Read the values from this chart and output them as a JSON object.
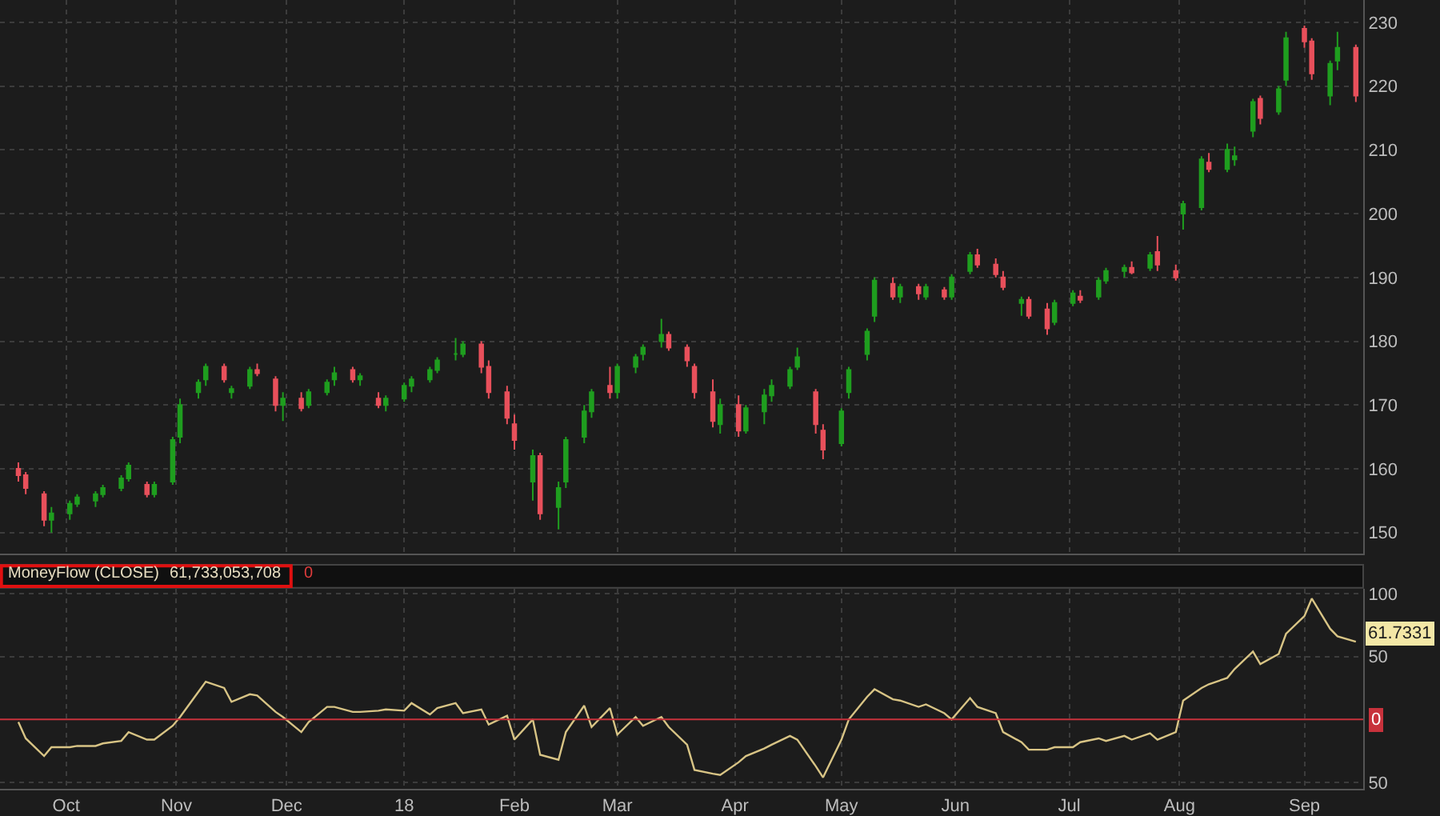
{
  "chart_data": [
    {
      "type": "candlestick",
      "colors": [
        "#e8505b",
        "#e8505b",
        "#e8505b",
        "#1f9e1f",
        "#1f9e1f",
        "#1f9e1f",
        "#1f9e1f",
        "#1f9e1f",
        "#1f9e1f",
        "#1f9e1f",
        "#e8505b",
        "#1f9e1f",
        "#1f9e1f",
        "#1f9e1f",
        "#1f9e1f",
        "#1f9e1f",
        "#e8505b",
        "#1f9e1f",
        "#1f9e1f",
        "#e8505b",
        "#e8505b",
        "#1f9e1f",
        "#e8505b",
        "#1f9e1f",
        "#1f9e1f",
        "#1f9e1f",
        "#e8505b",
        "#1f9e1f",
        "#e8505b",
        "#1f9e1f",
        "#1f9e1f",
        "#1f9e1f",
        "#1f9e1f",
        "#1f9e1f",
        "#1f9e1f",
        "#1f9e1f",
        "#e8505b",
        "#e8505b",
        "#e8505b",
        "#e8505b",
        "#1f9e1f",
        "#e8505b",
        "#1f9e1f",
        "#1f9e1f",
        "#1f9e1f",
        "#1f9e1f",
        "#e8505b",
        "#1f9e1f",
        "#1f9e1f",
        "#1f9e1f",
        "#1f9e1f",
        "#e8505b",
        "#e8505b",
        "#e8505b",
        "#e8505b",
        "#1f9e1f",
        "#e8505b",
        "#1f9e1f",
        "#1f9e1f",
        "#1f9e1f",
        "#1f9e1f",
        "#1f9e1f",
        "#e8505b",
        "#e8505b",
        "#1f9e1f",
        "#1f9e1f",
        "#1f9e1f",
        "#1f9e1f",
        "#e8505b",
        "#1f9e1f",
        "#e8505b",
        "#1f9e1f",
        "#e8505b",
        "#1f9e1f",
        "#1f9e1f",
        "#e8505b",
        "#e8505b",
        "#e8505b",
        "#1f9e1f",
        "#e8505b",
        "#e8505b",
        "#1f9e1f",
        "#1f9e1f",
        "#e8505b",
        "#1f9e1f",
        "#1f9e1f",
        "#1f9e1f",
        "#e8505b",
        "#1f9e1f",
        "#e8505b",
        "#e8505b",
        "#1f9e1f",
        "#1f9e1f",
        "#e8505b",
        "#1f9e1f",
        "#1f9e1f",
        "#1f9e1f",
        "#e8505b",
        "#1f9e1f",
        "#1f9e1f",
        "#e8505b",
        "#e8505b",
        "#1f9e1f",
        "#1f9e1f",
        "#e8505b"
      ],
      "grid": true,
      "tick_labels": "y",
      "xlim": [
        "2017-09-14",
        "2018-09-20"
      ],
      "ylim": [
        146.7,
        233.5
      ],
      "yticks": [
        150,
        160,
        170,
        180,
        190,
        200,
        210,
        220,
        230
      ],
      "xticks": [
        {
          "value": "2017-10-02",
          "label": null
        },
        {
          "value": "2017-11-01",
          "label": null
        },
        {
          "value": "2017-12-01",
          "label": null
        },
        {
          "value": "2018-01-02",
          "label": null
        },
        {
          "value": "2018-02-01",
          "label": null
        },
        {
          "value": "2018-03-01",
          "label": null
        },
        {
          "value": "2018-04-02",
          "label": null
        },
        {
          "value": "2018-05-01",
          "label": null
        },
        {
          "value": "2018-06-01",
          "label": null
        },
        {
          "value": "2018-07-02",
          "label": null
        },
        {
          "value": "2018-08-01",
          "label": null
        },
        {
          "value": "2018-09-04",
          "label": null
        }
      ],
      "x": [
        "2017-09-19",
        "2017-09-21",
        "2017-09-26",
        "2017-09-28",
        "2017-10-03",
        "2017-10-05",
        "2017-10-10",
        "2017-10-12",
        "2017-10-17",
        "2017-10-19",
        "2017-10-24",
        "2017-10-26",
        "2017-10-31",
        "2017-11-02",
        "2017-11-07",
        "2017-11-09",
        "2017-11-14",
        "2017-11-16",
        "2017-11-21",
        "2017-11-23",
        "2017-11-28",
        "2017-11-30",
        "2017-12-05",
        "2017-12-07",
        "2017-12-12",
        "2017-12-14",
        "2017-12-19",
        "2017-12-21",
        "2017-12-26",
        "2017-12-28",
        "2018-01-02",
        "2018-01-04",
        "2018-01-09",
        "2018-01-11",
        "2018-01-16",
        "2018-01-18",
        "2018-01-23",
        "2018-01-25",
        "2018-01-30",
        "2018-02-01",
        "2018-02-06",
        "2018-02-08",
        "2018-02-13",
        "2018-02-15",
        "2018-02-20",
        "2018-02-22",
        "2018-02-27",
        "2018-03-01",
        "2018-03-06",
        "2018-03-08",
        "2018-03-13",
        "2018-03-15",
        "2018-03-20",
        "2018-03-22",
        "2018-03-27",
        "2018-03-29",
        "2018-04-03",
        "2018-04-05",
        "2018-04-10",
        "2018-04-12",
        "2018-04-17",
        "2018-04-19",
        "2018-04-24",
        "2018-04-26",
        "2018-05-01",
        "2018-05-03",
        "2018-05-08",
        "2018-05-10",
        "2018-05-15",
        "2018-05-17",
        "2018-05-22",
        "2018-05-24",
        "2018-05-29",
        "2018-05-31",
        "2018-06-05",
        "2018-06-07",
        "2018-06-12",
        "2018-06-14",
        "2018-06-19",
        "2018-06-21",
        "2018-06-26",
        "2018-06-28",
        "2018-07-03",
        "2018-07-05",
        "2018-07-10",
        "2018-07-12",
        "2018-07-17",
        "2018-07-19",
        "2018-07-24",
        "2018-07-26",
        "2018-07-31",
        "2018-08-02",
        "2018-08-07",
        "2018-08-09",
        "2018-08-14",
        "2018-08-16",
        "2018-08-21",
        "2018-08-23",
        "2018-08-28",
        "2018-08-30",
        "2018-09-04",
        "2018-09-06",
        "2018-09-11",
        "2018-09-13",
        "2018-09-18"
      ],
      "ohlc": [
        [
          160,
          161,
          158,
          159
        ],
        [
          159,
          159.5,
          156,
          157
        ],
        [
          156,
          156.5,
          151,
          152
        ],
        [
          152,
          154,
          150,
          153
        ],
        [
          153,
          155,
          152,
          154.5
        ],
        [
          154.5,
          156,
          154,
          155.5
        ],
        [
          155,
          156.5,
          154,
          156
        ],
        [
          156,
          157.5,
          155.5,
          157
        ],
        [
          157,
          159,
          156.5,
          158.5
        ],
        [
          158.5,
          161,
          158,
          160.5
        ],
        [
          157.5,
          158,
          155.5,
          156
        ],
        [
          156,
          158,
          155.5,
          157.5
        ],
        [
          158,
          165,
          157.5,
          164.5
        ],
        [
          165,
          171,
          164,
          170
        ],
        [
          172,
          174,
          171,
          173.5
        ],
        [
          174,
          176.5,
          173,
          176
        ],
        [
          176,
          176.5,
          173.5,
          174
        ],
        [
          172,
          173,
          171,
          172.5
        ],
        [
          173,
          176,
          172.5,
          175.5
        ],
        [
          175.5,
          176.5,
          174.5,
          175
        ],
        [
          174,
          174.5,
          169,
          170
        ],
        [
          170,
          172,
          167.5,
          171
        ],
        [
          171,
          172,
          169,
          169.5
        ],
        [
          170,
          172.5,
          169.5,
          172
        ],
        [
          172,
          174,
          171.5,
          173.5
        ],
        [
          174,
          176,
          173,
          175
        ],
        [
          175.5,
          176,
          173.5,
          174
        ],
        [
          174,
          175,
          173,
          174.5
        ],
        [
          171,
          172,
          169.5,
          170
        ],
        [
          170,
          171.5,
          169,
          171
        ],
        [
          171,
          173.5,
          170.5,
          173
        ],
        [
          173,
          174.5,
          172,
          174
        ],
        [
          174,
          176,
          173.5,
          175.5
        ],
        [
          175.5,
          177.5,
          175,
          177
        ],
        [
          178,
          180.5,
          177,
          178
        ],
        [
          178,
          180,
          177.5,
          179.5
        ],
        [
          179.5,
          180,
          175,
          176
        ],
        [
          176,
          177,
          171,
          172
        ],
        [
          172,
          173,
          167,
          168
        ],
        [
          167,
          168.5,
          163,
          164.5
        ],
        [
          158,
          163,
          155,
          162
        ],
        [
          162,
          162.5,
          152,
          153
        ],
        [
          154,
          158,
          150.5,
          157
        ],
        [
          158,
          165,
          157,
          164.5
        ],
        [
          165,
          170,
          164,
          169
        ],
        [
          169,
          172.5,
          168,
          172
        ],
        [
          173,
          176,
          171,
          172
        ],
        [
          172,
          176.5,
          171,
          176
        ],
        [
          176,
          178,
          175,
          177.5
        ],
        [
          178,
          179.5,
          177,
          179
        ],
        [
          180,
          183.5,
          179,
          181
        ],
        [
          181,
          181.5,
          178.5,
          179
        ],
        [
          179,
          179.5,
          176,
          177
        ],
        [
          176,
          176.5,
          171,
          172
        ],
        [
          172,
          174,
          166.5,
          167.5
        ],
        [
          167,
          171,
          165.5,
          170
        ],
        [
          170,
          171.5,
          165,
          166
        ],
        [
          166,
          170,
          165.5,
          169.5
        ],
        [
          169,
          172.5,
          167,
          171.5
        ],
        [
          171.5,
          174,
          170.5,
          173
        ],
        [
          173,
          176,
          172.5,
          175.5
        ],
        [
          176,
          179,
          175.5,
          177.5
        ],
        [
          172,
          172.5,
          165.5,
          167
        ],
        [
          166,
          167,
          161.5,
          163
        ],
        [
          164,
          169.5,
          163.5,
          169
        ],
        [
          172,
          176,
          171,
          175.5
        ],
        [
          178,
          182,
          177,
          181.5
        ],
        [
          184,
          190,
          183,
          189.5
        ],
        [
          189,
          190,
          186.5,
          187
        ],
        [
          187,
          189,
          186,
          188.5
        ],
        [
          188.5,
          189,
          186.5,
          187.5
        ],
        [
          187,
          189,
          186.5,
          188.5
        ],
        [
          188,
          188.5,
          186.5,
          187
        ],
        [
          187,
          190.5,
          186.5,
          190
        ],
        [
          191,
          194,
          190.5,
          193.5
        ],
        [
          193.5,
          194.5,
          191.5,
          192
        ],
        [
          192,
          193,
          190,
          190.5
        ],
        [
          190,
          191,
          188,
          188.5
        ],
        [
          186,
          187,
          184,
          186.5
        ],
        [
          186.5,
          187,
          183.5,
          184
        ],
        [
          185,
          186,
          181,
          182
        ],
        [
          183,
          186.5,
          182.5,
          186
        ],
        [
          186,
          188,
          185.5,
          187.5
        ],
        [
          187,
          188,
          186,
          186.5
        ],
        [
          187,
          190,
          186.5,
          189.5
        ],
        [
          189.5,
          191.5,
          189,
          191
        ],
        [
          191,
          192,
          190,
          191.5
        ],
        [
          191.5,
          192.5,
          190.5,
          190.8
        ],
        [
          191.5,
          194,
          191,
          193.5
        ],
        [
          194,
          196.5,
          191,
          192
        ],
        [
          191,
          192,
          189.5,
          190
        ],
        [
          200,
          202,
          197.5,
          201.5
        ],
        [
          201,
          209,
          200.5,
          208.5
        ],
        [
          208,
          209.5,
          206.5,
          207
        ],
        [
          207,
          211,
          206.5,
          210
        ],
        [
          208.5,
          210.5,
          207.5,
          209
        ],
        [
          213,
          218,
          212,
          217.5
        ],
        [
          218,
          218.5,
          214,
          215
        ],
        [
          216,
          220,
          215.5,
          219.5
        ],
        [
          221,
          228.5,
          220,
          227.5
        ],
        [
          229,
          229.5,
          226,
          227
        ],
        [
          227,
          227.5,
          221,
          222
        ],
        [
          218.5,
          224,
          217,
          223.5
        ],
        [
          224,
          228.5,
          222.5,
          226
        ],
        [
          226,
          226.5,
          217.5,
          218.5
        ]
      ]
    },
    {
      "type": "line",
      "grid": true,
      "marker": "none",
      "line_style": "solid",
      "xlim": [
        "2017-09-14",
        "2018-09-20"
      ],
      "ylim": [
        -55,
        103.7
      ],
      "yticks": [
        100,
        50,
        {
          "value": -50,
          "label": "50"
        }
      ],
      "xticks": [
        {
          "value": "2017-10-02",
          "label": "Oct"
        },
        {
          "value": "2017-11-01",
          "label": "Nov"
        },
        {
          "value": "2017-12-01",
          "label": "Dec"
        },
        {
          "value": "2018-01-02",
          "label": "18"
        },
        {
          "value": "2018-02-01",
          "label": "Feb"
        },
        {
          "value": "2018-03-01",
          "label": "Mar"
        },
        {
          "value": "2018-04-02",
          "label": "Apr"
        },
        {
          "value": "2018-05-01",
          "label": "May"
        },
        {
          "value": "2018-06-01",
          "label": "Jun"
        },
        {
          "value": "2018-07-02",
          "label": "Jul"
        },
        {
          "value": "2018-08-01",
          "label": "Aug"
        },
        {
          "value": "2018-09-04",
          "label": "Sep"
        }
      ],
      "x": [
        "2017-09-19",
        "2017-09-21",
        "2017-09-26",
        "2017-09-28",
        "2017-10-03",
        "2017-10-05",
        "2017-10-10",
        "2017-10-12",
        "2017-10-17",
        "2017-10-19",
        "2017-10-24",
        "2017-10-26",
        "2017-10-31",
        "2017-11-02",
        "2017-11-07",
        "2017-11-09",
        "2017-11-14",
        "2017-11-16",
        "2017-11-21",
        "2017-11-23",
        "2017-11-28",
        "2017-11-30",
        "2017-12-05",
        "2017-12-07",
        "2017-12-12",
        "2017-12-14",
        "2017-12-19",
        "2017-12-21",
        "2017-12-26",
        "2017-12-28",
        "2018-01-02",
        "2018-01-04",
        "2018-01-09",
        "2018-01-11",
        "2018-01-16",
        "2018-01-18",
        "2018-01-23",
        "2018-01-25",
        "2018-01-30",
        "2018-02-01",
        "2018-02-06",
        "2018-02-08",
        "2018-02-13",
        "2018-02-15",
        "2018-02-20",
        "2018-02-22",
        "2018-02-27",
        "2018-03-01",
        "2018-03-06",
        "2018-03-08",
        "2018-03-13",
        "2018-03-15",
        "2018-03-20",
        "2018-03-22",
        "2018-03-27",
        "2018-03-29",
        "2018-04-03",
        "2018-04-05",
        "2018-04-10",
        "2018-04-12",
        "2018-04-17",
        "2018-04-19",
        "2018-04-24",
        "2018-04-26",
        "2018-05-01",
        "2018-05-03",
        "2018-05-08",
        "2018-05-10",
        "2018-05-15",
        "2018-05-17",
        "2018-05-22",
        "2018-05-24",
        "2018-05-29",
        "2018-05-31",
        "2018-06-05",
        "2018-06-07",
        "2018-06-12",
        "2018-06-14",
        "2018-06-19",
        "2018-06-21",
        "2018-06-26",
        "2018-06-28",
        "2018-07-03",
        "2018-07-05",
        "2018-07-10",
        "2018-07-12",
        "2018-07-17",
        "2018-07-19",
        "2018-07-24",
        "2018-07-26",
        "2018-07-31",
        "2018-08-02",
        "2018-08-07",
        "2018-08-09",
        "2018-08-14",
        "2018-08-16",
        "2018-08-21",
        "2018-08-23",
        "2018-08-28",
        "2018-08-30",
        "2018-09-04",
        "2018-09-06",
        "2018-09-11",
        "2018-09-13",
        "2018-09-18"
      ],
      "series": [
        {
          "color": "#d8c485",
          "values": [
            -2,
            -15,
            -29,
            -22,
            -22,
            -21,
            -21,
            -19,
            -17,
            -10,
            -16,
            -16,
            -5,
            2,
            22,
            30,
            25,
            14,
            20,
            19,
            6,
            2,
            -10,
            -2,
            10,
            10,
            6,
            6,
            7,
            8,
            7,
            13,
            4,
            9,
            13,
            5,
            8,
            -4,
            3,
            -16,
            0,
            -28,
            -32,
            -10,
            11,
            -6,
            9,
            -12,
            2,
            -5,
            2,
            -6,
            -20,
            -40,
            -43,
            -44,
            -34,
            -29,
            -23,
            -20,
            -13,
            -16,
            -37,
            -46,
            -16,
            0,
            18,
            24,
            16,
            15,
            10,
            12,
            5,
            0,
            17,
            10,
            5,
            -10,
            -18,
            -24,
            -24,
            -22,
            -22,
            -18,
            -15,
            -17,
            -13,
            -16,
            -11,
            -16,
            -10,
            15,
            25,
            28,
            33,
            40,
            54,
            44,
            52,
            68,
            82,
            96,
            72,
            66,
            61.7331
          ]
        }
      ],
      "ref_lines": [
        {
          "axis": "y",
          "value": 0,
          "label": "0",
          "color": "#c8323c"
        }
      ],
      "annotations": [
        "MoneyFlow (CLOSE)",
        "61,733,053,708",
        "0",
        {
          "text": "61.7331",
          "x": "2018-09-18",
          "y": 61.7331
        }
      ]
    }
  ]
}
